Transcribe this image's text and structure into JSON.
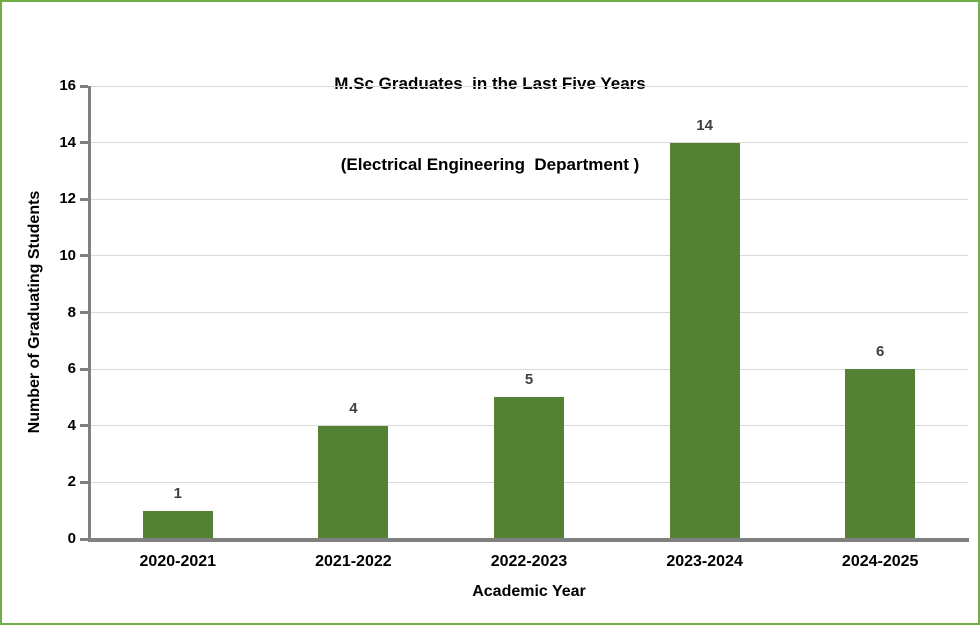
{
  "chart_data": {
    "type": "bar",
    "title": "M.Sc Graduates  in the Last Five Years",
    "subtitle": "(Electrical Engineering  Department )",
    "categories": [
      "2020-2021",
      "2021-2022",
      "2022-2023",
      "2023-2024",
      "2024-2025"
    ],
    "values": [
      1,
      4,
      5,
      14,
      6
    ],
    "data_labels": [
      "1",
      "4",
      "5",
      "14",
      "6"
    ],
    "xlabel": "Academic Year",
    "ylabel": "Number of Graduating Students",
    "ylim": [
      0,
      16
    ],
    "yticks": [
      0,
      2,
      4,
      6,
      8,
      10,
      12,
      14,
      16
    ],
    "grid": true,
    "legend": "none",
    "colors": {
      "bar": "#548235",
      "axis": "#808080",
      "gridline": "#d9d9d9",
      "frame_border": "#70ad47",
      "title_text": "#000000",
      "tick_text": "#000000",
      "data_label_text": "#404040",
      "background": "#ffffff"
    }
  }
}
